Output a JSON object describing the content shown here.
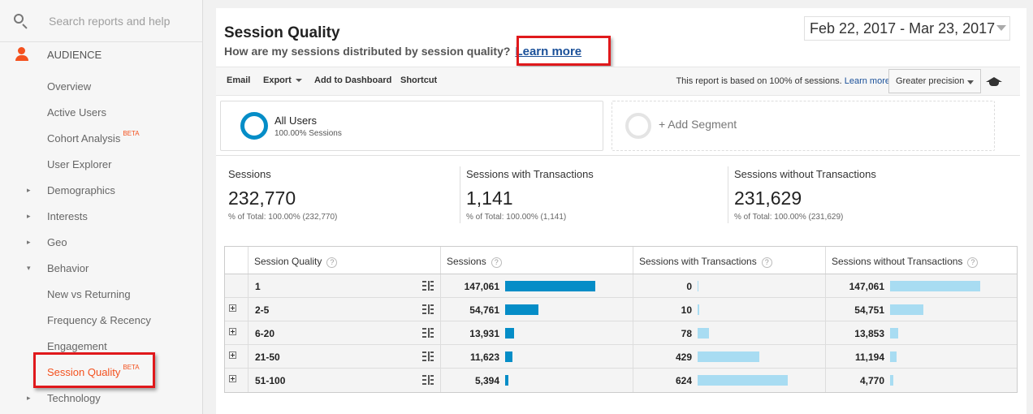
{
  "sidebar": {
    "search_placeholder": "Search reports and help",
    "section_label": "AUDIENCE",
    "items": [
      {
        "label": "Overview",
        "beta": ""
      },
      {
        "label": "Active Users",
        "beta": ""
      },
      {
        "label": "Cohort Analysis",
        "beta": "BETA"
      },
      {
        "label": "User Explorer",
        "beta": ""
      },
      {
        "label": "Demographics",
        "beta": "",
        "arrow": "▸"
      },
      {
        "label": "Interests",
        "beta": "",
        "arrow": "▸"
      },
      {
        "label": "Geo",
        "beta": "",
        "arrow": "▸"
      },
      {
        "label": "Behavior",
        "beta": "",
        "arrow": "▾"
      },
      {
        "label": "New vs Returning",
        "beta": ""
      },
      {
        "label": "Frequency & Recency",
        "beta": ""
      },
      {
        "label": "Engagement",
        "beta": ""
      },
      {
        "label": "Session Quality",
        "beta": "BETA"
      },
      {
        "label": "Technology",
        "beta": "",
        "arrow": "▸"
      }
    ]
  },
  "header": {
    "title": "Session Quality",
    "subtitle": "How are my sessions distributed by session quality?",
    "learn_more": "Learn more",
    "date_range": "Feb 22, 2017 - Mar 23, 2017"
  },
  "toolbar": {
    "email": "Email",
    "export": "Export",
    "add_to_dashboard": "Add to Dashboard",
    "shortcut": "Shortcut",
    "report_note": "This report is based on 100% of sessions.",
    "learn_more": "Learn more",
    "precision": "Greater precision"
  },
  "segments": {
    "current_name": "All Users",
    "current_sub": "100.00% Sessions",
    "add_label": "+ Add Segment"
  },
  "metrics": [
    {
      "name": "Sessions",
      "value": "232,770",
      "pct": "% of Total: 100.00% (232,770)"
    },
    {
      "name": "Sessions with Transactions",
      "value": "1,141",
      "pct": "% of Total: 100.00% (1,141)"
    },
    {
      "name": "Sessions without Transactions",
      "value": "231,629",
      "pct": "% of Total: 100.00% (231,629)"
    }
  ],
  "table": {
    "headers": [
      "Session Quality",
      "Sessions",
      "Sessions with Transactions",
      "Sessions without Transactions"
    ],
    "help_glyph": "?",
    "rows": [
      {
        "quality": "1",
        "sessions": "147,061",
        "with_tx": "0",
        "without_tx": "147,061",
        "sessions_frac": 1.0,
        "with_frac": 0.0,
        "without_frac": 1.0,
        "expandable": false
      },
      {
        "quality": "2-5",
        "sessions": "54,761",
        "with_tx": "10",
        "without_tx": "54,751",
        "sessions_frac": 0.372,
        "with_frac": 0.016,
        "without_frac": 0.372,
        "expandable": true
      },
      {
        "quality": "6-20",
        "sessions": "13,931",
        "with_tx": "78",
        "without_tx": "13,853",
        "sessions_frac": 0.095,
        "with_frac": 0.125,
        "without_frac": 0.094,
        "expandable": true
      },
      {
        "quality": "21-50",
        "sessions": "11,623",
        "with_tx": "429",
        "without_tx": "11,194",
        "sessions_frac": 0.079,
        "with_frac": 0.688,
        "without_frac": 0.076,
        "expandable": true
      },
      {
        "quality": "51-100",
        "sessions": "5,394",
        "with_tx": "624",
        "without_tx": "4,770",
        "sessions_frac": 0.037,
        "with_frac": 1.0,
        "without_frac": 0.032,
        "expandable": true
      }
    ]
  },
  "colors": {
    "accent": "#f4511e",
    "bar_dark": "#058dc7",
    "bar_light": "#a8dcf2",
    "highlight": "#e0191c"
  }
}
